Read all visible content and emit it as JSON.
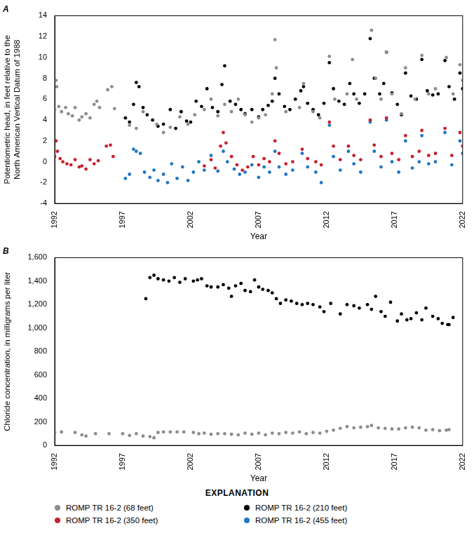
{
  "chart_data": [
    {
      "type": "scatter",
      "title": "A",
      "y_label": "Potentiometric head, in feet relative to the North American Vertical Datum of 1988",
      "x_label": "Year",
      "xlim": [
        1992,
        2022
      ],
      "xticks": [
        1992,
        1997,
        2002,
        2007,
        2012,
        2017,
        2022
      ],
      "ylim": [
        -4,
        14
      ],
      "yticks": [
        -4,
        -2,
        0,
        2,
        4,
        6,
        8,
        10,
        12,
        14
      ],
      "grid": false,
      "legend": "bottom",
      "series": [
        {
          "name": "ROMP TR 16-2 (68 feet)",
          "color": "#8c8c8c",
          "marker": "circle",
          "x": [
            1992.0,
            1992.1,
            1992.15,
            1992.3,
            1992.5,
            1992.8,
            1993.0,
            1993.3,
            1993.5,
            1993.8,
            1994.0,
            1994.3,
            1994.6,
            1994.9,
            1995.1,
            1995.3,
            1995.9,
            1996.2,
            1996.4,
            1997.5,
            1998.0,
            1998.5,
            1999.5,
            2000.0,
            2000.5,
            2001.2,
            2001.8,
            2002.3,
            2003.0,
            2003.5,
            2004.0,
            2004.5,
            2005.0,
            2005.5,
            2006.0,
            2006.5,
            2007.0,
            2007.5,
            2008.0,
            2008.2,
            2008.3,
            2009.0,
            2010.0,
            2010.3,
            2011.0,
            2011.5,
            2012.2,
            2012.6,
            2013.5,
            2013.9,
            2014.2,
            2015.3,
            2015.6,
            2016.0,
            2016.4,
            2016.8,
            2017.5,
            2017.8,
            2018.5,
            2019.0,
            2019.5,
            2020.0,
            2020.8,
            2021.3,
            2021.8,
            2022.0
          ],
          "values": [
            5.0,
            7.8,
            7.2,
            5.3,
            4.8,
            5.2,
            4.6,
            4.4,
            5.2,
            4.0,
            4.3,
            4.6,
            4.2,
            5.5,
            5.8,
            5.2,
            6.9,
            7.2,
            5.1,
            3.5,
            3.2,
            4.8,
            3.6,
            2.8,
            3.3,
            4.3,
            3.6,
            4.5,
            5.0,
            6.0,
            4.4,
            5.5,
            4.8,
            6.0,
            4.5,
            3.8,
            4.2,
            4.5,
            6.5,
            11.7,
            9.0,
            4.8,
            5.2,
            7.5,
            4.8,
            4.2,
            10.1,
            6.0,
            6.5,
            9.8,
            6.0,
            12.6,
            8.0,
            6.0,
            10.5,
            6.5,
            4.6,
            9.0,
            6.0,
            10.2,
            6.5,
            7.0,
            10.0,
            6.5,
            9.3,
            7.8
          ]
        },
        {
          "name": "ROMP TR 16-2 (210 feet)",
          "color": "#000000",
          "marker": "circle",
          "x": [
            1997.2,
            1997.5,
            1997.8,
            1998.0,
            1998.2,
            1998.5,
            1998.8,
            1999.2,
            1999.6,
            2000.0,
            2000.5,
            2000.9,
            2001.3,
            2001.7,
            2002.0,
            2002.4,
            2002.8,
            2003.2,
            2003.6,
            2004.0,
            2004.3,
            2004.5,
            2004.9,
            2005.3,
            2005.7,
            2006.0,
            2006.5,
            2007.0,
            2007.3,
            2007.7,
            2008.0,
            2008.2,
            2008.5,
            2008.9,
            2009.3,
            2009.7,
            2010.1,
            2010.3,
            2010.6,
            2011.0,
            2011.4,
            2011.8,
            2012.2,
            2012.5,
            2012.9,
            2013.3,
            2013.7,
            2014.0,
            2014.4,
            2014.8,
            2015.2,
            2015.5,
            2015.9,
            2016.2,
            2016.4,
            2016.8,
            2017.2,
            2017.5,
            2017.8,
            2018.2,
            2018.6,
            2019.0,
            2019.4,
            2019.8,
            2020.2,
            2020.7,
            2021.0,
            2021.4,
            2021.8,
            2022.0
          ],
          "values": [
            4.2,
            3.8,
            5.5,
            7.6,
            7.2,
            5.2,
            4.5,
            4.0,
            3.4,
            3.6,
            5.0,
            3.2,
            4.8,
            3.9,
            3.8,
            5.8,
            5.3,
            7.0,
            5.2,
            4.8,
            7.4,
            9.2,
            5.8,
            5.5,
            5.0,
            4.6,
            5.0,
            4.3,
            5.0,
            5.4,
            5.8,
            8.0,
            6.5,
            5.3,
            5.0,
            6.0,
            6.8,
            7.2,
            5.6,
            5.0,
            4.5,
            5.6,
            9.5,
            7.0,
            5.8,
            5.5,
            7.5,
            6.5,
            5.6,
            6.5,
            11.8,
            8.0,
            6.5,
            7.5,
            10.5,
            6.6,
            5.5,
            4.5,
            8.5,
            6.3,
            6.0,
            9.8,
            6.8,
            6.4,
            6.5,
            9.7,
            7.2,
            6.0,
            8.5,
            7.0
          ]
        },
        {
          "name": "ROMP TR 16-2 (350 feet)",
          "color": "#c8202f",
          "marker": "circle",
          "x": [
            1992.0,
            1992.1,
            1992.2,
            1992.4,
            1992.6,
            1992.9,
            1993.2,
            1993.5,
            1993.8,
            1994.0,
            1994.3,
            1994.6,
            1994.9,
            1995.2,
            1995.8,
            1996.1,
            1996.3,
            2003.0,
            2003.5,
            2003.8,
            2004.2,
            2004.4,
            2004.6,
            2005.0,
            2005.4,
            2005.8,
            2006.2,
            2006.6,
            2007.0,
            2007.4,
            2007.8,
            2008.2,
            2008.5,
            2009.0,
            2009.5,
            2010.2,
            2010.6,
            2011.2,
            2011.6,
            2012.2,
            2012.5,
            2013.0,
            2013.6,
            2014.0,
            2014.5,
            2015.2,
            2015.5,
            2016.0,
            2016.4,
            2016.8,
            2017.3,
            2017.8,
            2018.3,
            2018.8,
            2019.0,
            2019.5,
            2020.0,
            2020.7,
            2021.2,
            2021.8,
            2022.0
          ],
          "values": [
            0.5,
            2.0,
            1.0,
            0.3,
            0.0,
            -0.2,
            -0.3,
            0.2,
            -0.5,
            -0.4,
            -0.7,
            0.2,
            -0.2,
            0.1,
            1.5,
            1.6,
            0.5,
            -0.4,
            0.2,
            -0.6,
            1.5,
            2.8,
            1.8,
            0.5,
            -0.3,
            -0.8,
            -0.5,
            0.5,
            -0.3,
            0.3,
            0.0,
            2.0,
            0.8,
            -0.2,
            0.0,
            1.2,
            0.3,
            0.0,
            -0.3,
            3.8,
            1.5,
            0.2,
            1.5,
            0.6,
            0.2,
            4.0,
            1.6,
            0.5,
            4.2,
            0.8,
            0.2,
            2.5,
            0.5,
            1.0,
            3.0,
            0.6,
            0.8,
            3.2,
            0.6,
            2.8,
            1.5
          ]
        },
        {
          "name": "ROMP TR 16-2 (455 feet)",
          "color": "#1f77c4",
          "marker": "circle",
          "x": [
            1997.2,
            1997.5,
            1997.8,
            1998.0,
            1998.3,
            1998.6,
            1999.0,
            1999.3,
            1999.6,
            2000.0,
            2000.3,
            2000.6,
            2001.0,
            2001.4,
            2001.8,
            2002.2,
            2002.6,
            2003.0,
            2003.5,
            2004.0,
            2004.4,
            2004.7,
            2005.2,
            2005.6,
            2006.0,
            2006.5,
            2007.0,
            2007.4,
            2007.8,
            2008.2,
            2008.5,
            2009.0,
            2009.5,
            2010.2,
            2010.6,
            2011.2,
            2011.6,
            2012.2,
            2012.5,
            2013.0,
            2013.6,
            2014.0,
            2014.5,
            2015.2,
            2015.5,
            2016.0,
            2016.4,
            2016.8,
            2017.3,
            2017.8,
            2018.3,
            2018.8,
            2019.0,
            2019.5,
            2020.0,
            2020.7,
            2021.2,
            2021.8,
            2022.0
          ],
          "values": [
            -1.6,
            -1.2,
            1.2,
            1.0,
            0.8,
            -1.0,
            -1.5,
            -0.8,
            -1.8,
            -1.2,
            -2.0,
            -0.2,
            -1.6,
            -0.5,
            -1.8,
            -1.0,
            0.0,
            -0.8,
            0.6,
            -0.9,
            1.0,
            0.0,
            -0.7,
            -1.2,
            -1.0,
            -0.3,
            -1.5,
            -0.5,
            -1.0,
            1.0,
            -0.5,
            -1.2,
            -0.8,
            0.8,
            -0.5,
            -1.0,
            -2.0,
            3.5,
            0.5,
            -0.8,
            1.0,
            -0.2,
            -1.0,
            3.8,
            1.0,
            -0.5,
            4.0,
            0.0,
            -1.0,
            2.0,
            -0.6,
            0.0,
            2.5,
            -0.2,
            0.0,
            2.8,
            -0.3,
            2.0,
            0.8
          ]
        }
      ]
    },
    {
      "type": "scatter",
      "title": "B",
      "y_label": "Chloride concentration, in milligrams per liter",
      "x_label": "Year",
      "xlim": [
        1992,
        2022
      ],
      "xticks": [
        1992,
        1997,
        2002,
        2007,
        2012,
        2017,
        2022
      ],
      "ylim": [
        0,
        1600
      ],
      "yticks": [
        0,
        200,
        400,
        600,
        800,
        {
          "value": 1000,
          "label": "1,000"
        },
        {
          "value": 1200,
          "label": "1,200"
        },
        {
          "value": 1400,
          "label": "1,400"
        },
        {
          "value": 1600,
          "label": "1,600"
        }
      ],
      "grid": false,
      "series": [
        {
          "name": "ROMP TR 16-2 (68 feet)",
          "color": "#8c8c8c",
          "marker": "circle",
          "x": [
            1992.0,
            1992.5,
            1993.5,
            1994.0,
            1994.3,
            1995.0,
            1996.0,
            1997.0,
            1997.5,
            1998.0,
            1998.5,
            1999.0,
            1999.3,
            1999.6,
            2000.0,
            2000.5,
            2001.0,
            2001.5,
            2002.2,
            2002.6,
            2003.0,
            2003.5,
            2004.0,
            2004.5,
            2005.0,
            2005.5,
            2006.0,
            2006.5,
            2007.0,
            2007.5,
            2008.0,
            2008.5,
            2009.0,
            2009.5,
            2010.0,
            2010.5,
            2011.0,
            2011.5,
            2012.0,
            2012.5,
            2013.0,
            2013.5,
            2014.0,
            2014.5,
            2015.0,
            2015.3,
            2015.8,
            2016.3,
            2016.8,
            2017.3,
            2017.8,
            2018.3,
            2018.8,
            2019.3,
            2019.8,
            2020.3,
            2020.8,
            2021.0
          ],
          "values": [
            110,
            115,
            110,
            90,
            80,
            100,
            100,
            100,
            85,
            100,
            80,
            75,
            65,
            110,
            115,
            115,
            115,
            115,
            110,
            100,
            105,
            95,
            100,
            100,
            95,
            90,
            105,
            95,
            105,
            90,
            105,
            100,
            110,
            105,
            115,
            100,
            110,
            105,
            120,
            130,
            145,
            160,
            150,
            155,
            160,
            170,
            150,
            145,
            140,
            140,
            150,
            155,
            150,
            130,
            135,
            125,
            130,
            135
          ]
        },
        {
          "name": "ROMP TR 16-2 (210 feet)",
          "color": "#000000",
          "marker": "circle",
          "x": [
            1998.7,
            1999.0,
            1999.3,
            1999.6,
            2000.0,
            2000.4,
            2000.8,
            2001.2,
            2001.6,
            2002.2,
            2002.5,
            2002.8,
            2003.2,
            2003.5,
            2004.0,
            2004.4,
            2004.8,
            2005.0,
            2005.3,
            2005.7,
            2006.0,
            2006.4,
            2006.7,
            2007.0,
            2007.3,
            2007.7,
            2008.0,
            2008.3,
            2008.6,
            2009.0,
            2009.4,
            2009.8,
            2010.2,
            2010.6,
            2011.0,
            2011.5,
            2011.8,
            2012.3,
            2013.0,
            2013.5,
            2014.0,
            2014.4,
            2015.0,
            2015.3,
            2015.6,
            2016.0,
            2016.3,
            2016.7,
            2017.2,
            2017.5,
            2017.9,
            2018.2,
            2018.6,
            2019.0,
            2019.3,
            2019.8,
            2020.2,
            2020.5,
            2020.9,
            2021.0,
            2021.3
          ],
          "values": [
            1250,
            1430,
            1450,
            1420,
            1410,
            1400,
            1430,
            1390,
            1420,
            1400,
            1410,
            1420,
            1360,
            1350,
            1350,
            1370,
            1340,
            1270,
            1360,
            1380,
            1320,
            1310,
            1410,
            1350,
            1330,
            1320,
            1300,
            1250,
            1210,
            1240,
            1230,
            1210,
            1200,
            1210,
            1200,
            1180,
            1140,
            1210,
            1120,
            1200,
            1190,
            1170,
            1200,
            1160,
            1270,
            1140,
            1100,
            1220,
            1060,
            1120,
            1070,
            1080,
            1130,
            1070,
            1170,
            1100,
            1080,
            1040,
            1030,
            1030,
            1090
          ]
        }
      ]
    }
  ],
  "legend_title": "EXPLANATION"
}
